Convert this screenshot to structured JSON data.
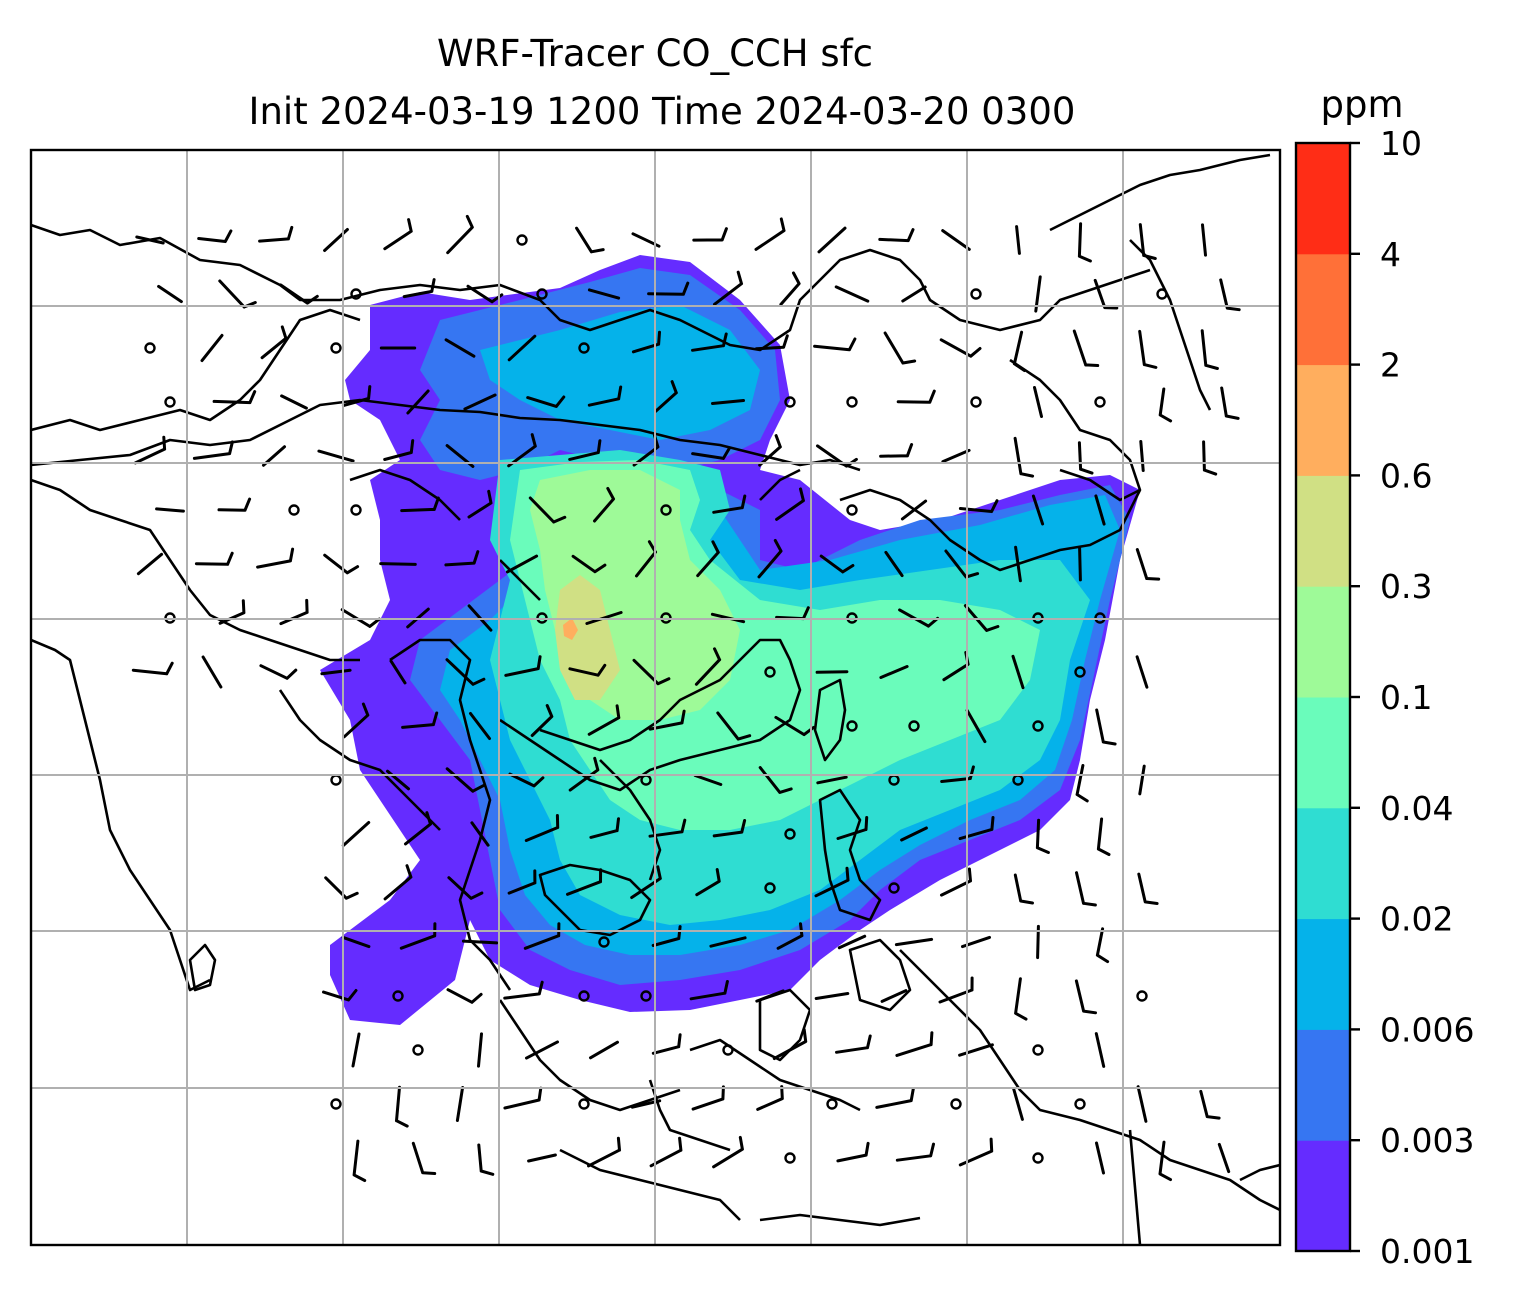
{
  "chart_data": {
    "type": "heatmap",
    "title_line1": "WRF-Tracer CO_CCH sfc",
    "title_line2": "Init 2024-03-19 1200 Time 2024-03-20 0300",
    "colorbar": {
      "label": "ppm",
      "levels": [
        "0.001",
        "0.003",
        "0.006",
        "0.02",
        "0.04",
        "0.1",
        "0.3",
        "0.6",
        "2",
        "4",
        "10"
      ],
      "colors": [
        "#652cff",
        "#3676f2",
        "#05b2ea",
        "#2fddd2",
        "#6afcbb",
        "#9efa98",
        "#d0e084",
        "#ffae5e",
        "#ff7038",
        "#ff2d16"
      ]
    },
    "grid": true,
    "map_overlays": [
      "coastlines",
      "country-borders",
      "wind-barbs"
    ]
  }
}
